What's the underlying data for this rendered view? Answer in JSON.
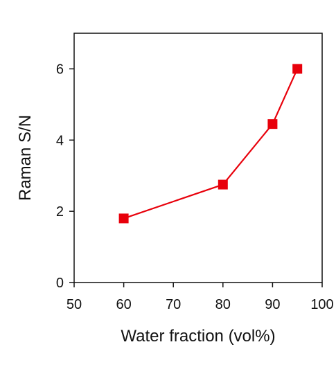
{
  "chart_data": {
    "type": "line",
    "title": "",
    "xlabel": "Water fraction (vol%)",
    "ylabel": "Raman S/N",
    "xlim": [
      50,
      100
    ],
    "ylim": [
      0,
      7
    ],
    "xticks": [
      50,
      60,
      70,
      80,
      90,
      100
    ],
    "yticks": [
      0,
      2,
      4,
      6
    ],
    "grid": false,
    "legend": "none",
    "series": [
      {
        "x": [
          60,
          80,
          90,
          95
        ],
        "y": [
          1.8,
          2.75,
          4.45,
          6.0
        ],
        "color": "#e8000b",
        "marker": "square"
      }
    ]
  }
}
